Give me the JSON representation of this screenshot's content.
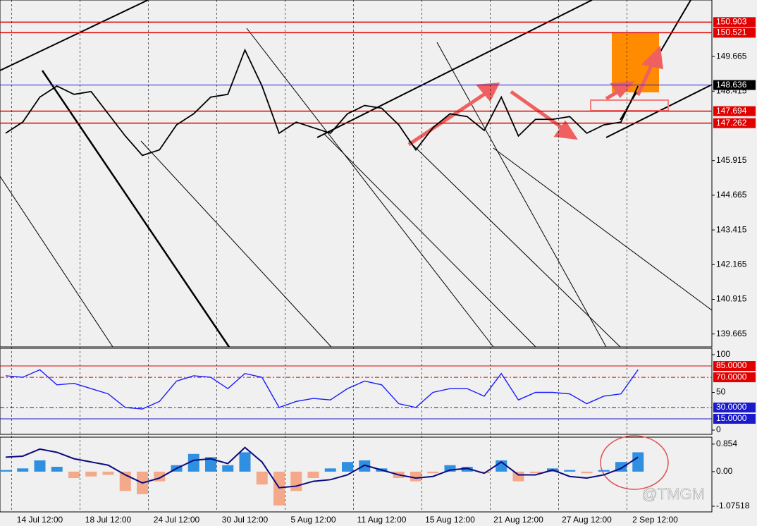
{
  "chart_data": [
    {
      "type": "line",
      "categories": [
        null,
        null,
        "14 Jul 12:00",
        null,
        null,
        null,
        "18 Jul 12:00",
        null,
        null,
        null,
        "24 Jul 12:00",
        null,
        null,
        null,
        "30 Jul 12:00",
        null,
        null,
        null,
        "5 Aug 12:00",
        null,
        null,
        null,
        "11 Aug 12:00",
        null,
        null,
        null,
        "15 Aug 12:00",
        null,
        null,
        null,
        "21 Aug 12:00",
        null,
        null,
        null,
        "27 Aug 12:00",
        null,
        null,
        null,
        "2 Sep 12:00"
      ],
      "series": [
        {
          "color": "#000000",
          "values": [
            146.9,
            147.3,
            148.2,
            148.6,
            148.3,
            148.4,
            147.6,
            146.8,
            146.1,
            146.3,
            147.2,
            147.6,
            148.2,
            148.3,
            149.9,
            148.6,
            146.9,
            147.3,
            147.1,
            146.9,
            147.6,
            147.9,
            147.8,
            147.2,
            146.3,
            147.1,
            147.6,
            147.5,
            147.0,
            148.2,
            146.8,
            147.4,
            147.4,
            147.5,
            146.9,
            147.2,
            147.3,
            148.6,
            null
          ]
        }
      ],
      "ylim": [
        139.2,
        151.7
      ],
      "yticks": [
        139.665,
        140.915,
        142.165,
        143.415,
        144.665,
        145.915,
        148.415,
        149.665
      ],
      "levels": [
        150.903,
        150.521,
        148.636,
        147.694,
        147.262
      ],
      "level_colors": [
        "#e00000",
        "#e00000",
        "#2020d0",
        "#e00000",
        "#e00000"
      ],
      "level_label_colors": [
        "#e00000",
        "#e00000",
        "#000000",
        "#e00000",
        "#e00000"
      ],
      "watermark": "@TMGM"
    },
    {
      "type": "line",
      "series": [
        {
          "color": "#1a1aff",
          "values": [
            72,
            70,
            80,
            60,
            62,
            55,
            48,
            30,
            28,
            38,
            65,
            72,
            70,
            55,
            75,
            70,
            30,
            38,
            42,
            40,
            55,
            65,
            60,
            35,
            30,
            50,
            55,
            55,
            45,
            75,
            40,
            50,
            50,
            48,
            35,
            45,
            48,
            80,
            null
          ]
        }
      ],
      "ylim": [
        -5.6,
        108.4
      ],
      "yticks": [
        0,
        50,
        100
      ],
      "levels": [
        85,
        70,
        30,
        15
      ],
      "value_labels": [
        "85.0000",
        "70.0000",
        "30.0000",
        "15.0000"
      ],
      "level_colors": [
        "#e00000",
        "#e00000",
        "#1a1acc",
        "#1a1acc"
      ],
      "level_dashed": [
        false,
        true,
        true,
        false
      ]
    },
    {
      "type": "bar",
      "values": [
        0.05,
        0.1,
        0.35,
        0.15,
        -0.2,
        -0.15,
        -0.1,
        -0.6,
        -0.7,
        -0.3,
        0.2,
        0.55,
        0.45,
        0.2,
        0.6,
        -0.4,
        -1.05,
        -0.6,
        -0.2,
        0.1,
        0.3,
        0.35,
        0.1,
        -0.2,
        -0.3,
        -0.05,
        0.2,
        0.15,
        -0.05,
        0.35,
        -0.3,
        -0.05,
        0.1,
        0.05,
        -0.05,
        0.05,
        0.3,
        0.6,
        null
      ],
      "color": "#2f8fe0",
      "negative_color": "#f4a98a",
      "line": {
        "color": "#0a0a80",
        "values": [
          0.45,
          0.48,
          0.7,
          0.6,
          0.4,
          0.3,
          0.2,
          -0.1,
          -0.35,
          -0.2,
          0.1,
          0.35,
          0.4,
          0.25,
          0.75,
          0.3,
          -0.5,
          -0.45,
          -0.3,
          -0.25,
          -0.1,
          0.2,
          0.05,
          -0.1,
          -0.2,
          -0.15,
          0.05,
          0.1,
          -0.05,
          0.3,
          -0.1,
          -0.1,
          0.05,
          -0.15,
          -0.2,
          -0.1,
          0.1,
          0.45,
          null
        ]
      },
      "ylim": [
        -1.25,
        1.07
      ],
      "yticks": [
        {
          "value": -1.07518,
          "label": "-1.07518"
        },
        {
          "value": 0,
          "label": "0.00"
        },
        0.854
      ]
    }
  ]
}
